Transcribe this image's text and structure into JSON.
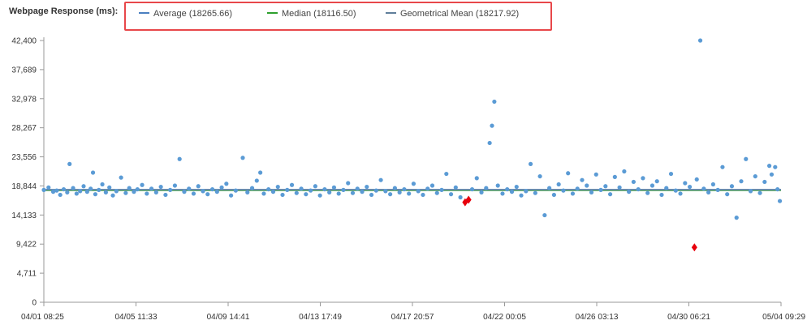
{
  "chart_data": {
    "type": "scatter",
    "title": "Webpage Response (ms):",
    "legend": [
      {
        "label": "Average (18265.66)",
        "color": "#4a7fc0"
      },
      {
        "label": "Median (18116.50)",
        "color": "#2ea02e"
      },
      {
        "label": "Geometrical Mean (18217.92)",
        "color": "#607e9a"
      }
    ],
    "ylim": [
      0,
      42400
    ],
    "yticks": [
      "0",
      "4,711",
      "9,422",
      "14,133",
      "18,844",
      "23,556",
      "28,267",
      "32,978",
      "37,689",
      "42,400"
    ],
    "xticks": [
      "04/01 08:25",
      "04/05 11:33",
      "04/09 14:41",
      "04/13 17:49",
      "04/17 20:57",
      "04/22 00:05",
      "04/26 03:13",
      "04/30 06:21",
      "05/04 09:29"
    ],
    "series": [
      {
        "name": "Average (18265.66)",
        "type": "line",
        "color": "#4a7fc0",
        "values": [
          18265.66
        ]
      },
      {
        "name": "Median (18116.50)",
        "type": "line",
        "color": "#2ea02e",
        "values": [
          18116.5
        ]
      },
      {
        "name": "Geometrical Mean (18217.92)",
        "type": "line",
        "color": "#607e9a",
        "values": [
          18217.92
        ]
      },
      {
        "type": "scatter",
        "color": "#5b9bd5",
        "points": [
          [
            0.0,
            18200
          ],
          [
            0.2,
            18600
          ],
          [
            0.4,
            17900
          ],
          [
            0.55,
            18100
          ],
          [
            0.7,
            17400
          ],
          [
            0.85,
            18300
          ],
          [
            1.0,
            17800
          ],
          [
            1.1,
            22400
          ],
          [
            1.25,
            18500
          ],
          [
            1.4,
            17600
          ],
          [
            1.55,
            18000
          ],
          [
            1.7,
            18800
          ],
          [
            1.85,
            17900
          ],
          [
            2.0,
            18400
          ],
          [
            2.1,
            21000
          ],
          [
            2.2,
            17500
          ],
          [
            2.35,
            18200
          ],
          [
            2.5,
            19100
          ],
          [
            2.65,
            17800
          ],
          [
            2.8,
            18600
          ],
          [
            2.95,
            17300
          ],
          [
            3.1,
            18000
          ],
          [
            3.3,
            20200
          ],
          [
            3.5,
            17700
          ],
          [
            3.65,
            18500
          ],
          [
            3.85,
            17900
          ],
          [
            4.0,
            18300
          ],
          [
            4.2,
            19000
          ],
          [
            4.4,
            17600
          ],
          [
            4.6,
            18400
          ],
          [
            4.8,
            17800
          ],
          [
            5.0,
            18700
          ],
          [
            5.2,
            17400
          ],
          [
            5.4,
            18200
          ],
          [
            5.6,
            18900
          ],
          [
            5.8,
            23200
          ],
          [
            6.0,
            17900
          ],
          [
            6.2,
            18400
          ],
          [
            6.4,
            17600
          ],
          [
            6.6,
            18800
          ],
          [
            6.8,
            18000
          ],
          [
            7.0,
            17500
          ],
          [
            7.2,
            18300
          ],
          [
            7.4,
            17900
          ],
          [
            7.6,
            18600
          ],
          [
            7.8,
            19200
          ],
          [
            8.0,
            17300
          ],
          [
            8.2,
            18100
          ],
          [
            8.5,
            23400
          ],
          [
            8.7,
            17800
          ],
          [
            8.9,
            18500
          ],
          [
            9.1,
            19700
          ],
          [
            9.25,
            21000
          ],
          [
            9.4,
            17600
          ],
          [
            9.6,
            18300
          ],
          [
            9.8,
            17900
          ],
          [
            10.0,
            18700
          ],
          [
            10.2,
            17400
          ],
          [
            10.4,
            18200
          ],
          [
            10.6,
            19000
          ],
          [
            10.8,
            17700
          ],
          [
            11.0,
            18400
          ],
          [
            11.2,
            17500
          ],
          [
            11.4,
            18100
          ],
          [
            11.6,
            18800
          ],
          [
            11.8,
            17300
          ],
          [
            12.0,
            18300
          ],
          [
            12.2,
            17800
          ],
          [
            12.4,
            18600
          ],
          [
            12.6,
            17600
          ],
          [
            12.8,
            18200
          ],
          [
            13.0,
            19300
          ],
          [
            13.2,
            17700
          ],
          [
            13.4,
            18400
          ],
          [
            13.6,
            17900
          ],
          [
            13.8,
            18700
          ],
          [
            14.0,
            17400
          ],
          [
            14.2,
            18100
          ],
          [
            14.4,
            19800
          ],
          [
            14.6,
            18000
          ],
          [
            14.8,
            17500
          ],
          [
            15.0,
            18500
          ],
          [
            15.2,
            17800
          ],
          [
            15.4,
            18300
          ],
          [
            15.6,
            17600
          ],
          [
            15.8,
            19200
          ],
          [
            16.0,
            18000
          ],
          [
            16.2,
            17400
          ],
          [
            16.4,
            18400
          ],
          [
            16.6,
            18900
          ],
          [
            16.8,
            17700
          ],
          [
            17.0,
            18200
          ],
          [
            17.2,
            20800
          ],
          [
            17.4,
            17500
          ],
          [
            17.6,
            18600
          ],
          [
            17.8,
            17000
          ],
          [
            18.0,
            16200
          ],
          [
            18.1,
            16500
          ],
          [
            18.3,
            18300
          ],
          [
            18.5,
            20100
          ],
          [
            18.7,
            17800
          ],
          [
            18.9,
            18500
          ],
          [
            19.05,
            25800
          ],
          [
            19.15,
            28600
          ],
          [
            19.25,
            32500
          ],
          [
            19.4,
            18900
          ],
          [
            19.6,
            17600
          ],
          [
            19.8,
            18300
          ],
          [
            20.0,
            17900
          ],
          [
            20.2,
            18700
          ],
          [
            20.4,
            17300
          ],
          [
            20.6,
            18000
          ],
          [
            20.8,
            22400
          ],
          [
            21.0,
            17700
          ],
          [
            21.2,
            20400
          ],
          [
            21.4,
            14100
          ],
          [
            21.6,
            18500
          ],
          [
            21.8,
            17400
          ],
          [
            22.0,
            19100
          ],
          [
            22.2,
            18100
          ],
          [
            22.4,
            20900
          ],
          [
            22.6,
            17600
          ],
          [
            22.8,
            18400
          ],
          [
            23.0,
            19800
          ],
          [
            23.2,
            18900
          ],
          [
            23.4,
            17800
          ],
          [
            23.6,
            20700
          ],
          [
            23.8,
            18200
          ],
          [
            24.0,
            18800
          ],
          [
            24.2,
            17500
          ],
          [
            24.4,
            20300
          ],
          [
            24.6,
            18600
          ],
          [
            24.8,
            21200
          ],
          [
            25.0,
            17900
          ],
          [
            25.2,
            19500
          ],
          [
            25.4,
            18300
          ],
          [
            25.6,
            20100
          ],
          [
            25.8,
            17700
          ],
          [
            26.0,
            18900
          ],
          [
            26.2,
            19600
          ],
          [
            26.4,
            17400
          ],
          [
            26.6,
            18500
          ],
          [
            26.8,
            20800
          ],
          [
            27.0,
            18100
          ],
          [
            27.2,
            17600
          ],
          [
            27.4,
            19300
          ],
          [
            27.6,
            18700
          ],
          [
            27.8,
            8900
          ],
          [
            27.9,
            19900
          ],
          [
            28.05,
            42400
          ],
          [
            28.2,
            18400
          ],
          [
            28.4,
            17800
          ],
          [
            28.6,
            19100
          ],
          [
            28.8,
            18200
          ],
          [
            29.0,
            21900
          ],
          [
            29.2,
            17500
          ],
          [
            29.4,
            18800
          ],
          [
            29.6,
            13700
          ],
          [
            29.8,
            19600
          ],
          [
            30.0,
            23200
          ],
          [
            30.2,
            18000
          ],
          [
            30.4,
            20400
          ],
          [
            30.6,
            17700
          ],
          [
            30.8,
            19500
          ],
          [
            31.0,
            22100
          ],
          [
            31.1,
            20700
          ],
          [
            31.25,
            21900
          ],
          [
            31.35,
            18300
          ],
          [
            31.45,
            16400
          ]
        ]
      }
    ],
    "anomalies": [
      [
        18.0,
        16200
      ],
      [
        18.15,
        16600
      ],
      [
        27.8,
        8900
      ]
    ]
  }
}
